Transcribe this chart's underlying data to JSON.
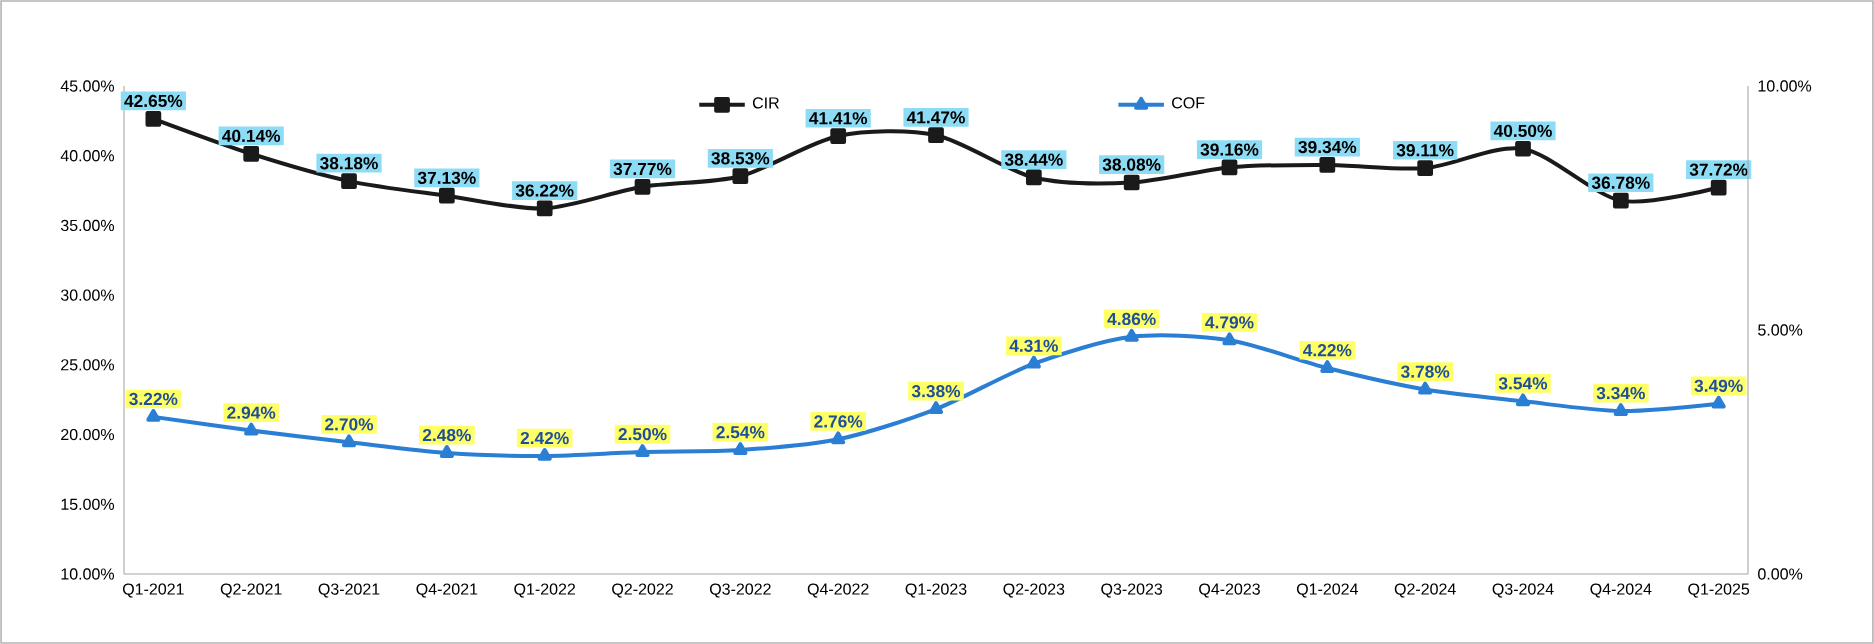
{
  "chart_data": {
    "type": "line",
    "categories": [
      "Q1-2021",
      "Q2-2021",
      "Q3-2021",
      "Q4-2021",
      "Q1-2022",
      "Q2-2022",
      "Q3-2022",
      "Q4-2022",
      "Q1-2023",
      "Q2-2023",
      "Q3-2023",
      "Q4-2023",
      "Q1-2024",
      "Q2-2024",
      "Q3-2024",
      "Q4-2024",
      "Q1-2025"
    ],
    "series": [
      {
        "name": "CIR",
        "color": "#1a1a1a",
        "marker": "square",
        "values": [
          42.65,
          40.14,
          38.18,
          37.13,
          36.22,
          37.77,
          38.53,
          41.41,
          41.47,
          38.44,
          38.08,
          39.16,
          39.34,
          39.11,
          40.5,
          36.78,
          37.72
        ],
        "value_labels": [
          "42.65%",
          "40.14%",
          "38.18%",
          "37.13%",
          "36.22%",
          "37.77%",
          "38.53%",
          "41.41%",
          "41.47%",
          "38.44%",
          "38.08%",
          "39.16%",
          "39.34%",
          "39.11%",
          "40.50%",
          "36.78%",
          "37.72%"
        ]
      },
      {
        "name": "COF",
        "color": "#2a7fd4",
        "marker": "triangle",
        "axis": "y2",
        "values": [
          3.22,
          2.94,
          2.7,
          2.48,
          2.42,
          2.5,
          2.54,
          2.76,
          3.38,
          4.31,
          4.86,
          4.79,
          4.22,
          3.78,
          3.54,
          3.34,
          3.49
        ],
        "value_labels": [
          "3.22%",
          "2.94%",
          "2.70%",
          "2.48%",
          "2.42%",
          "2.50%",
          "2.54%",
          "2.76%",
          "3.38%",
          "4.31%",
          "4.86%",
          "4.79%",
          "4.22%",
          "3.78%",
          "3.54%",
          "3.34%",
          "3.49%"
        ]
      }
    ],
    "ylim": [
      10,
      45
    ],
    "yticks": [
      {
        "value": 10,
        "label": "10.00%"
      },
      {
        "value": 15,
        "label": "15.00%"
      },
      {
        "value": 20,
        "label": "20.00%"
      },
      {
        "value": 25,
        "label": "25.00%"
      },
      {
        "value": 30,
        "label": "30.00%"
      },
      {
        "value": 35,
        "label": "35.00%"
      },
      {
        "value": 40,
        "label": "40.00%"
      },
      {
        "value": 45,
        "label": "45.00%"
      }
    ],
    "y2lim": [
      0,
      10
    ],
    "y2ticks": [
      {
        "value": 0,
        "label": "0.00%"
      },
      {
        "value": 5,
        "label": "5.00%"
      },
      {
        "value": 10,
        "label": "10.00%"
      }
    ],
    "legend": "top",
    "grid": false
  }
}
